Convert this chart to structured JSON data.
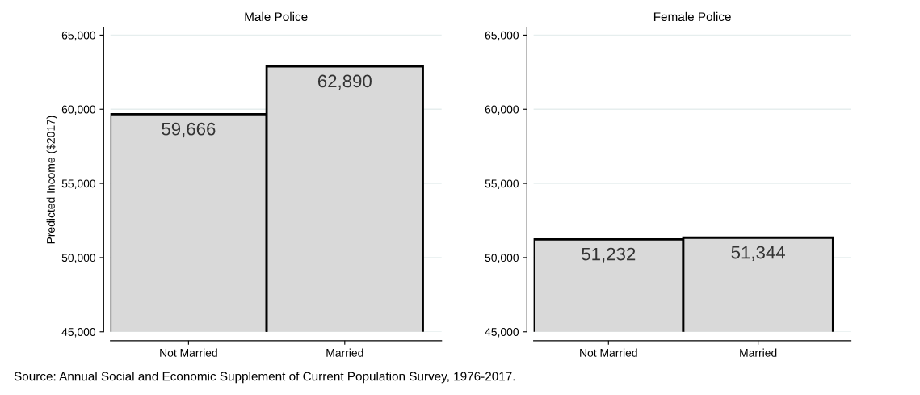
{
  "chart_data": [
    {
      "type": "bar",
      "title": "Male Police",
      "ylabel": "Predicted Income ($2017)",
      "categories": [
        "Not Married",
        "Married"
      ],
      "values": [
        59666,
        62890
      ],
      "value_labels": [
        "59,666",
        "62,890"
      ],
      "color": "#d9d9d9",
      "ylim": [
        45000,
        65500
      ],
      "yticks": [
        {
          "value": 45000,
          "label": "45,000"
        },
        {
          "value": 50000,
          "label": "50,000"
        },
        {
          "value": 55000,
          "label": "55,000"
        },
        {
          "value": 60000,
          "label": "60,000"
        },
        {
          "value": 65000,
          "label": "65,000"
        }
      ],
      "grid": "y"
    },
    {
      "type": "bar",
      "title": "Female Police",
      "categories": [
        "Not Married",
        "Married"
      ],
      "values": [
        51232,
        51344
      ],
      "value_labels": [
        "51,232",
        "51,344"
      ],
      "color": "#d9d9d9",
      "ylim": [
        45000,
        65500
      ],
      "yticks": [
        {
          "value": 45000,
          "label": "45,000"
        },
        {
          "value": 50000,
          "label": "50,000"
        },
        {
          "value": 55000,
          "label": "55,000"
        },
        {
          "value": 60000,
          "label": "60,000"
        },
        {
          "value": 65000,
          "label": "65,000"
        }
      ],
      "grid": "y",
      "annotations": [
        "Source: Annual Social and Economic Supplement of Current Population Survey, 1976-2017."
      ]
    }
  ]
}
